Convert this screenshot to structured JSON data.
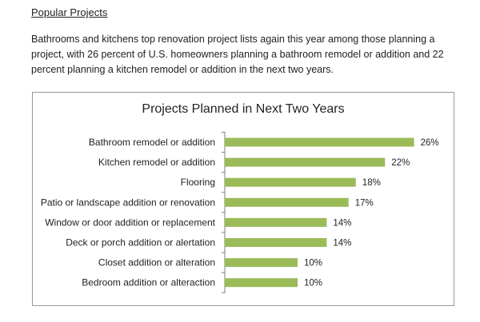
{
  "heading": "Popular Projects",
  "intro": "Bathrooms and kitchens top renovation project lists again this year among those planning a project, with 26 percent of U.S. homeowners planning a bathroom remodel or addition and 22 percent planning a kitchen remodel or addition in the next two years.",
  "chart_data": {
    "type": "bar",
    "orientation": "horizontal",
    "title": "Projects Planned in Next Two Years",
    "categories": [
      "Bathroom remodel or addition",
      "Kitchen remodel or addition",
      "Flooring",
      "Patio or landscape addition or renovation",
      "Window or door addition or replacement",
      "Deck or porch addition or alertation",
      "Closet addition or alteration",
      "Bedroom addition or alteraction"
    ],
    "values": [
      26,
      22,
      18,
      17,
      14,
      14,
      10,
      10
    ],
    "value_labels": [
      "26%",
      "22%",
      "18%",
      "17%",
      "14%",
      "14%",
      "10%",
      "10%"
    ],
    "unit": "%",
    "bar_color": "#9bbb59",
    "axis_line_color": "#7f7f7f",
    "grid": false,
    "legend": false
  }
}
